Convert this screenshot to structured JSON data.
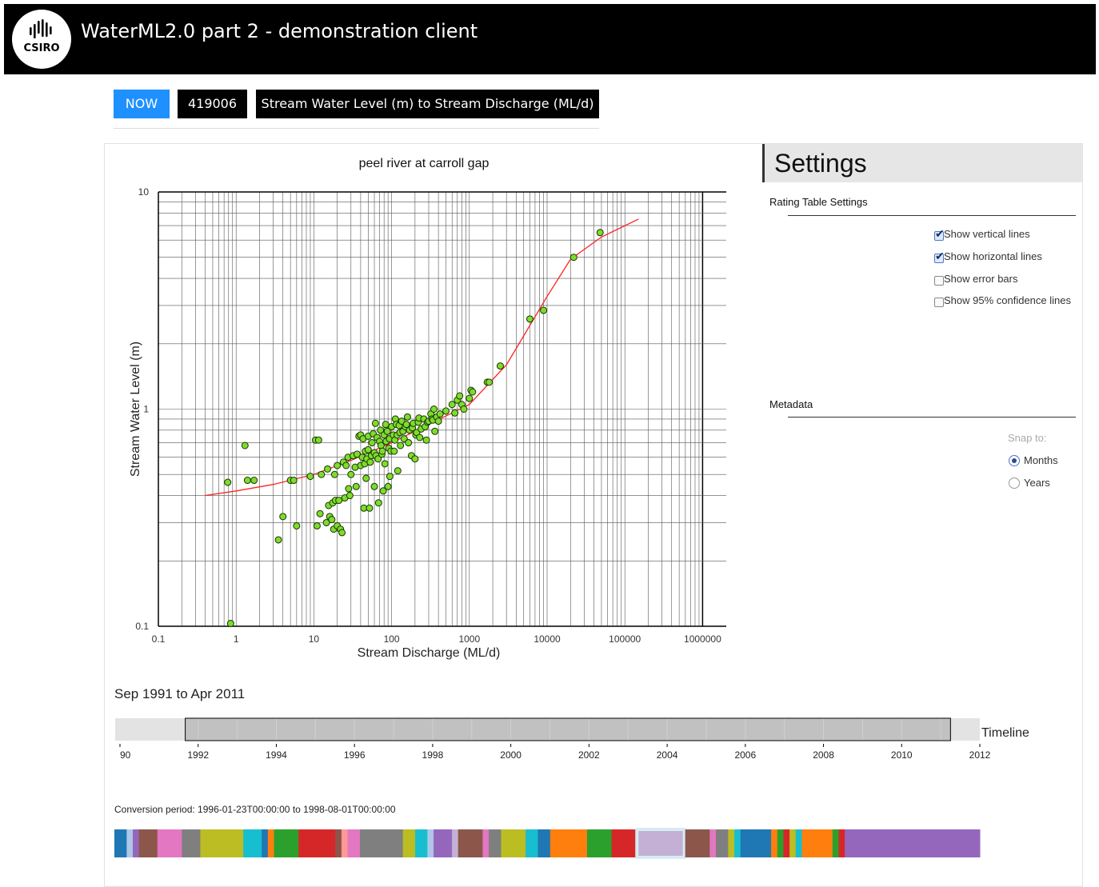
{
  "header": {
    "logo_text": "CSIRO",
    "logo_icon": "csiro-bars-logo",
    "title": "WaterML2.0 part 2 - demonstration client"
  },
  "breadcrumb": {
    "now": "NOW",
    "site": "419006",
    "conversion": "Stream Water Level (m) to Stream Discharge (ML/d)",
    "colors": {
      "now": "#1e90ff",
      "dark": "#000000"
    }
  },
  "chart_data": {
    "type": "scatter",
    "title": "peel river at carroll gap",
    "xlabel": "Stream Discharge (ML/d)",
    "ylabel": "Stream Water Level (m)",
    "xscale": "log",
    "yscale": "log",
    "xlim": [
      0.1,
      1000000
    ],
    "ylim": [
      0.1,
      10
    ],
    "x_ticks": [
      "0.1",
      "1",
      "10",
      "100",
      "1000",
      "10000",
      "100000",
      "1000000"
    ],
    "y_ticks": [
      "0.1",
      "1",
      "10"
    ],
    "grid": true,
    "point_color": "#7ddc2e",
    "curve_color": "#ff2222",
    "series": [
      {
        "type": "scatter",
        "points": [
          [
            0.78,
            0.46
          ],
          [
            0.85,
            0.103
          ],
          [
            1.3,
            0.68
          ],
          [
            1.4,
            0.47
          ],
          [
            1.7,
            0.47
          ],
          [
            3.5,
            0.25
          ],
          [
            4.0,
            0.32
          ],
          [
            5.0,
            0.47
          ],
          [
            5.5,
            0.47
          ],
          [
            6.0,
            0.29
          ],
          [
            9.0,
            0.49
          ],
          [
            10.5,
            0.72
          ],
          [
            11.5,
            0.72
          ],
          [
            12.5,
            0.5
          ],
          [
            11.0,
            0.29
          ],
          [
            12.0,
            0.33
          ],
          [
            14.5,
            0.3
          ],
          [
            16.0,
            0.32
          ],
          [
            15.5,
            0.36
          ],
          [
            15.0,
            0.53
          ],
          [
            17.0,
            0.31
          ],
          [
            18.0,
            0.28
          ],
          [
            18.5,
            0.5
          ],
          [
            17.5,
            0.37
          ],
          [
            19.0,
            0.38
          ],
          [
            20.0,
            0.29
          ],
          [
            20.0,
            0.55
          ],
          [
            21.0,
            0.38
          ],
          [
            22.0,
            0.28
          ],
          [
            23.0,
            0.27
          ],
          [
            24.0,
            0.57
          ],
          [
            25.0,
            0.39
          ],
          [
            26.0,
            0.55
          ],
          [
            27.5,
            0.6
          ],
          [
            28.0,
            0.43
          ],
          [
            29.0,
            0.4
          ],
          [
            30.0,
            0.5
          ],
          [
            32.0,
            0.61
          ],
          [
            34.0,
            0.54
          ],
          [
            35.0,
            0.44
          ],
          [
            36.0,
            0.62
          ],
          [
            38.0,
            0.75
          ],
          [
            40.0,
            0.55
          ],
          [
            40.0,
            0.76
          ],
          [
            42.0,
            0.6
          ],
          [
            43.0,
            0.73
          ],
          [
            44.0,
            0.35
          ],
          [
            45.0,
            0.56
          ],
          [
            46.0,
            0.64
          ],
          [
            47.0,
            0.48
          ],
          [
            48.0,
            0.59
          ],
          [
            50.0,
            0.65
          ],
          [
            50.0,
            0.75
          ],
          [
            52.0,
            0.35
          ],
          [
            53.0,
            0.57
          ],
          [
            55.0,
            0.61
          ],
          [
            56.0,
            0.7
          ],
          [
            58.0,
            0.77
          ],
          [
            60.0,
            0.44
          ],
          [
            60.0,
            0.63
          ],
          [
            62.0,
            0.86
          ],
          [
            63.0,
            0.61
          ],
          [
            65.0,
            0.74
          ],
          [
            67.0,
            0.59
          ],
          [
            68.0,
            0.37
          ],
          [
            70.0,
            0.71
          ],
          [
            72.0,
            0.8
          ],
          [
            73.0,
            0.68
          ],
          [
            75.0,
            0.62
          ],
          [
            76.0,
            0.64
          ],
          [
            78.0,
            0.42
          ],
          [
            80.0,
            0.76
          ],
          [
            82.0,
            0.56
          ],
          [
            84.0,
            0.85
          ],
          [
            85.0,
            0.71
          ],
          [
            88.0,
            0.79
          ],
          [
            90.0,
            0.44
          ],
          [
            92.0,
            0.66
          ],
          [
            94.0,
            0.73
          ],
          [
            95.0,
            0.49
          ],
          [
            98.0,
            0.64
          ],
          [
            100.0,
            0.83
          ],
          [
            105.0,
            0.76
          ],
          [
            108.0,
            0.64
          ],
          [
            110.0,
            0.72
          ],
          [
            112.0,
            0.9
          ],
          [
            115.0,
            0.85
          ],
          [
            118.0,
            0.76
          ],
          [
            120.0,
            0.52
          ],
          [
            125.0,
            0.84
          ],
          [
            128.0,
            0.78
          ],
          [
            130.0,
            0.68
          ],
          [
            135.0,
            0.88
          ],
          [
            140.0,
            0.79
          ],
          [
            145.0,
            0.73
          ],
          [
            150.0,
            0.83
          ],
          [
            155.0,
            0.85
          ],
          [
            160.0,
            0.92
          ],
          [
            165.0,
            0.7
          ],
          [
            170.0,
            0.8
          ],
          [
            180.0,
            0.61
          ],
          [
            185.0,
            0.82
          ],
          [
            190.0,
            0.86
          ],
          [
            200.0,
            0.59
          ],
          [
            205.0,
            0.76
          ],
          [
            210.0,
            0.78
          ],
          [
            220.0,
            0.87
          ],
          [
            225.0,
            0.91
          ],
          [
            230.0,
            0.74
          ],
          [
            240.0,
            0.81
          ],
          [
            260.0,
            0.9
          ],
          [
            270.0,
            0.83
          ],
          [
            280.0,
            0.72
          ],
          [
            290.0,
            0.87
          ],
          [
            300.0,
            0.88
          ],
          [
            320.0,
            0.95
          ],
          [
            330.0,
            0.9
          ],
          [
            340.0,
            0.89
          ],
          [
            350.0,
            1.0
          ],
          [
            360.0,
            0.79
          ],
          [
            380.0,
            0.92
          ],
          [
            400.0,
            0.88
          ],
          [
            420.0,
            0.95
          ],
          [
            500.0,
            0.98
          ],
          [
            600.0,
            1.05
          ],
          [
            650.0,
            0.96
          ],
          [
            700.0,
            1.1
          ],
          [
            750.0,
            1.15
          ],
          [
            800.0,
            1.05
          ],
          [
            850.0,
            1.0
          ],
          [
            1000.0,
            1.12
          ],
          [
            1050.0,
            1.22
          ],
          [
            1100.0,
            1.2
          ],
          [
            1700.0,
            1.33
          ],
          [
            1800.0,
            1.33
          ],
          [
            2500.0,
            1.58
          ],
          [
            6000.0,
            2.6
          ],
          [
            9000.0,
            2.85
          ],
          [
            22000.0,
            5.0
          ],
          [
            48000.0,
            6.5
          ]
        ]
      },
      {
        "type": "line",
        "points": [
          [
            0.4,
            0.4
          ],
          [
            1,
            0.42
          ],
          [
            3,
            0.45
          ],
          [
            10,
            0.5
          ],
          [
            30,
            0.58
          ],
          [
            100,
            0.7
          ],
          [
            300,
            0.85
          ],
          [
            1000,
            1.05
          ],
          [
            3000,
            1.6
          ],
          [
            10000,
            3.3
          ],
          [
            20000,
            4.9
          ],
          [
            50000,
            6.2
          ],
          [
            150000,
            7.5
          ]
        ]
      }
    ]
  },
  "settings": {
    "title": "Settings",
    "rating_section": "Rating Table Settings",
    "options": [
      {
        "label": "Show vertical lines",
        "checked": true
      },
      {
        "label": "Show horizontal lines",
        "checked": true
      },
      {
        "label": "Show error bars",
        "checked": false
      },
      {
        "label": "Show 95% confidence lines",
        "checked": false
      }
    ],
    "metadata_section": "Metadata",
    "snap_label": "Snap to:",
    "snap_options": [
      {
        "label": "Months",
        "selected": true
      },
      {
        "label": "Years",
        "selected": false
      }
    ]
  },
  "timeline": {
    "period_text": "Sep 1991 to Apr 2011",
    "label": "Timeline",
    "years": [
      "90",
      "1992",
      "1994",
      "1996",
      "1998",
      "2000",
      "2002",
      "2004",
      "2006",
      "2008",
      "2010",
      "2012"
    ],
    "range": {
      "start": 1991.67,
      "end": 2011.25
    },
    "domain": [
      1990,
      2012
    ]
  },
  "conversion": {
    "period_text": "Conversion period: 1996-01-23T00:00:00 to 1998-08-01T00:00:00",
    "segments": [
      {
        "color": "#1f77b4",
        "w": 2
      },
      {
        "color": "#aec7e8",
        "w": 1
      },
      {
        "color": "#9467bd",
        "w": 1
      },
      {
        "color": "#8c564b",
        "w": 3
      },
      {
        "color": "#e377c2",
        "w": 4
      },
      {
        "color": "#7f7f7f",
        "w": 3
      },
      {
        "color": "#bcbd22",
        "w": 7
      },
      {
        "color": "#17becf",
        "w": 3
      },
      {
        "color": "#1f77b4",
        "w": 1
      },
      {
        "color": "#ff7f0e",
        "w": 1
      },
      {
        "color": "#2ca02c",
        "w": 4
      },
      {
        "color": "#d62728",
        "w": 6
      },
      {
        "color": "#8c564b",
        "w": 1
      },
      {
        "color": "#ff9896",
        "w": 1
      },
      {
        "color": "#e377c2",
        "w": 2
      },
      {
        "color": "#7f7f7f",
        "w": 7
      },
      {
        "color": "#bcbd22",
        "w": 2
      },
      {
        "color": "#17becf",
        "w": 2
      },
      {
        "color": "#aec7e8",
        "w": 1
      },
      {
        "color": "#9467bd",
        "w": 3
      },
      {
        "color": "#c5b0d5",
        "w": 1
      },
      {
        "color": "#8c564b",
        "w": 4
      },
      {
        "color": "#e377c2",
        "w": 1
      },
      {
        "color": "#7f7f7f",
        "w": 2
      },
      {
        "color": "#bcbd22",
        "w": 4
      },
      {
        "color": "#17becf",
        "w": 2
      },
      {
        "color": "#1f77b4",
        "w": 2
      },
      {
        "color": "#ff7f0e",
        "w": 6
      },
      {
        "color": "#2ca02c",
        "w": 4
      },
      {
        "color": "#d62728",
        "w": 4
      },
      {
        "color": "#c5b0d5",
        "w": 8,
        "selected": true
      },
      {
        "color": "#8c564b",
        "w": 4
      },
      {
        "color": "#e377c2",
        "w": 1
      },
      {
        "color": "#7f7f7f",
        "w": 2
      },
      {
        "color": "#bcbd22",
        "w": 1
      },
      {
        "color": "#17becf",
        "w": 1
      },
      {
        "color": "#1f77b4",
        "w": 5
      },
      {
        "color": "#ff7f0e",
        "w": 1
      },
      {
        "color": "#2ca02c",
        "w": 1
      },
      {
        "color": "#d62728",
        "w": 1
      },
      {
        "color": "#bcbd22",
        "w": 1
      },
      {
        "color": "#17becf",
        "w": 1
      },
      {
        "color": "#ff7f0e",
        "w": 5
      },
      {
        "color": "#2ca02c",
        "w": 1
      },
      {
        "color": "#d62728",
        "w": 1
      },
      {
        "color": "#9467bd",
        "w": 22
      }
    ]
  }
}
